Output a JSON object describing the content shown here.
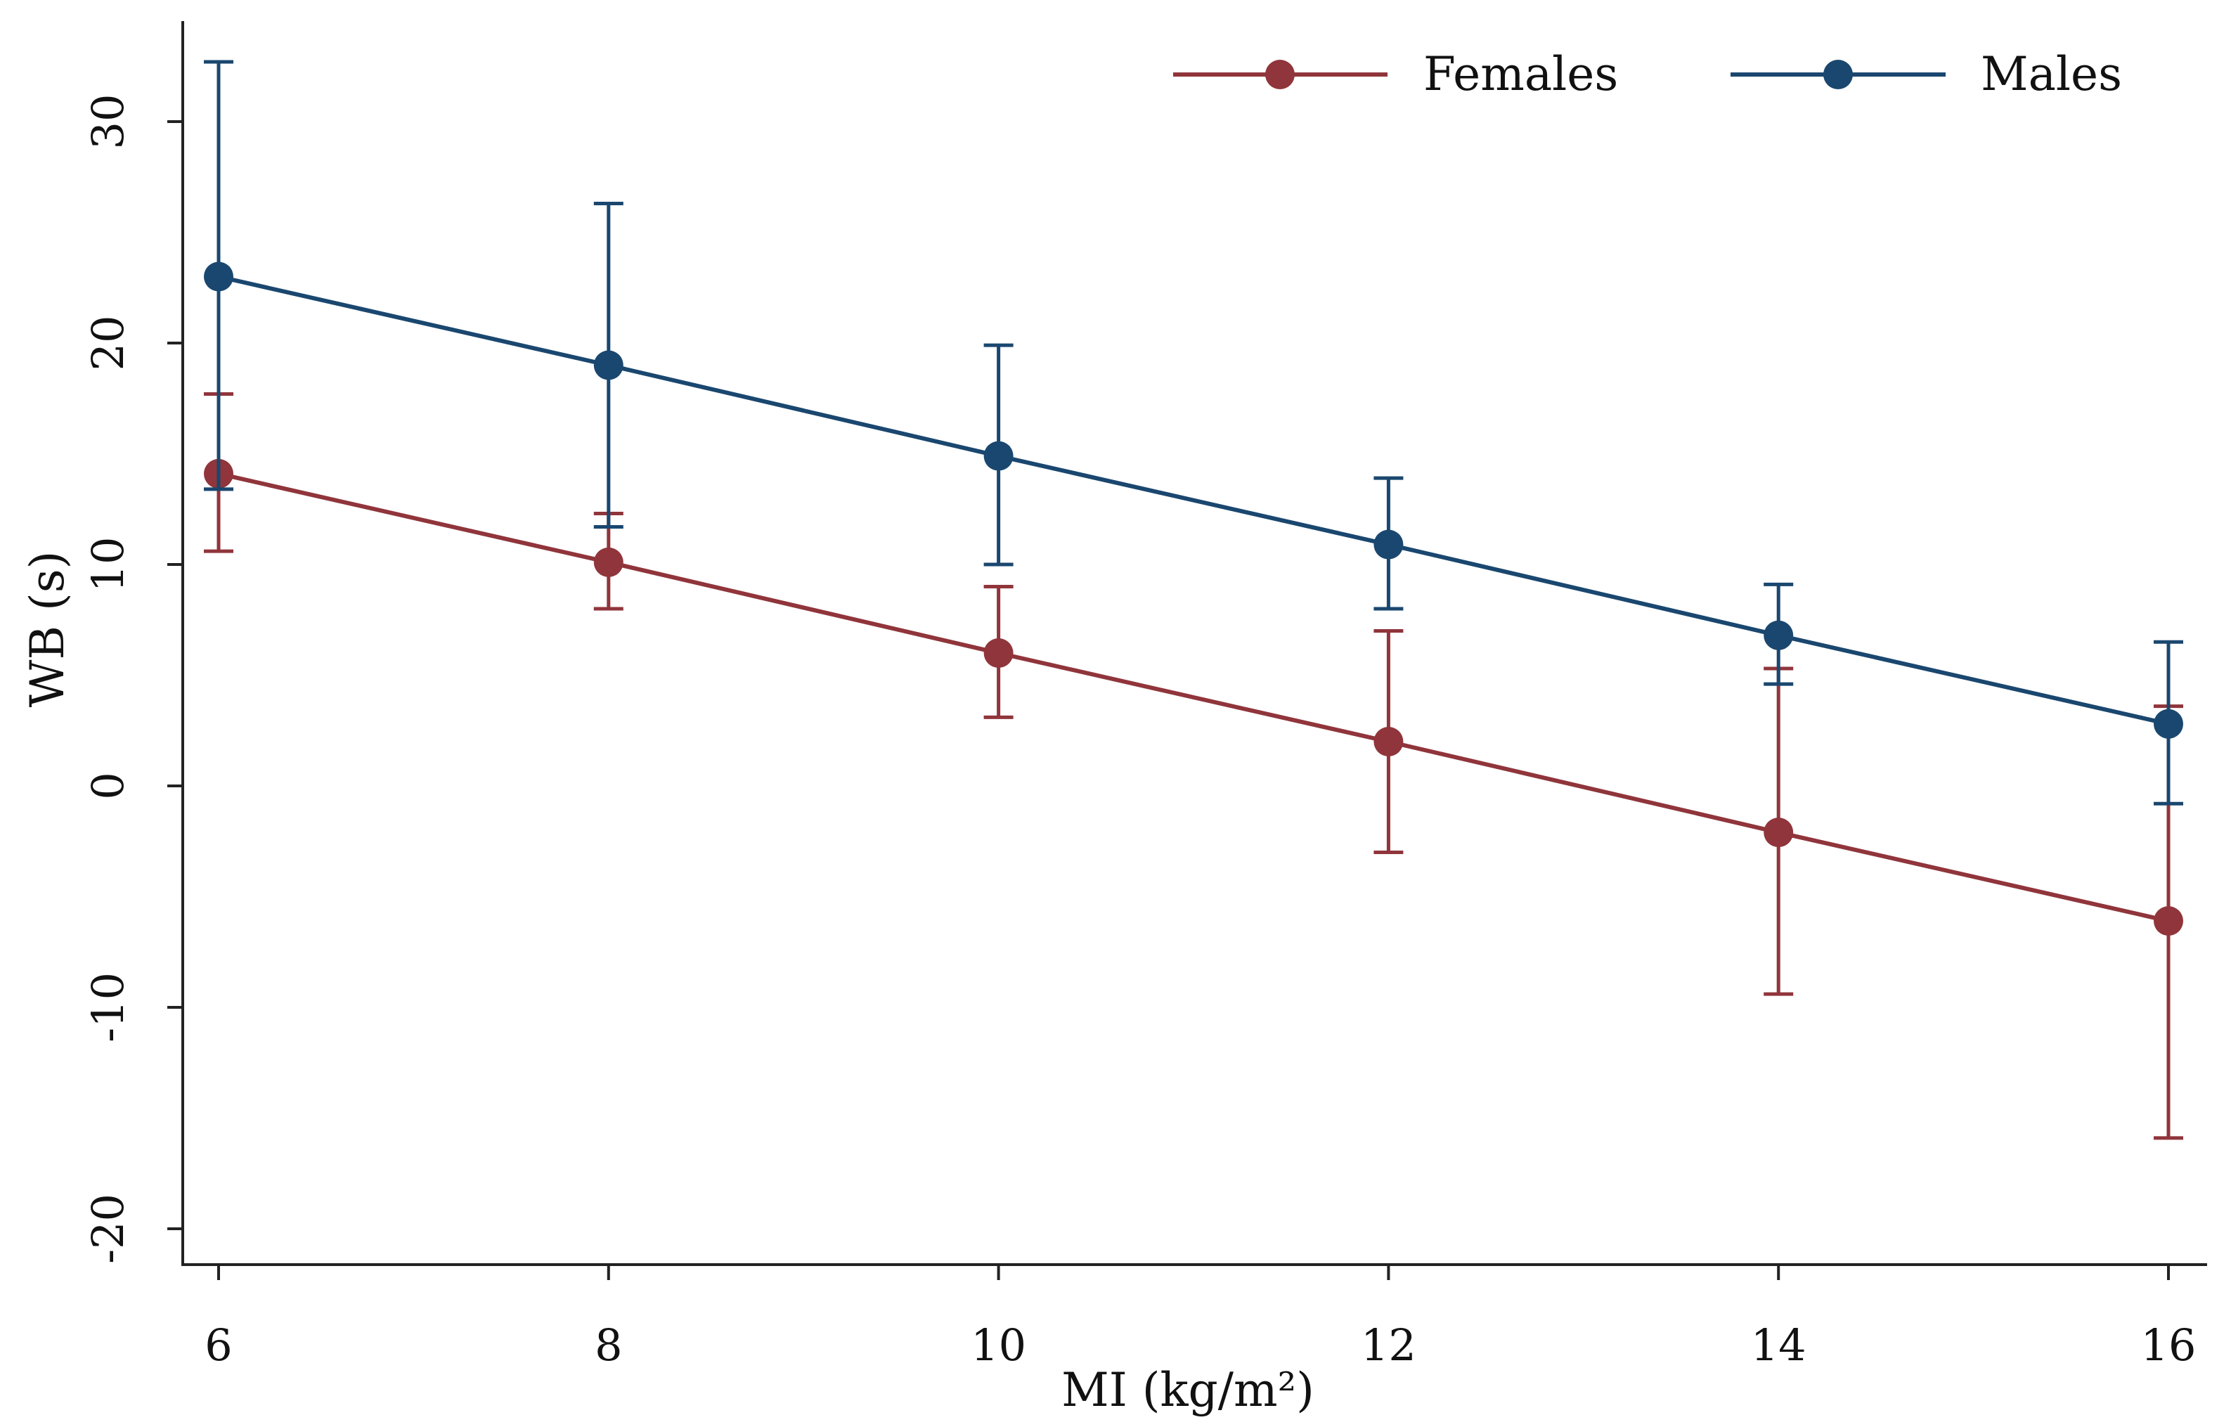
{
  "chart_data": {
    "type": "line",
    "title": "",
    "xlabel": "MI (kg/m²)",
    "ylabel": "WB (s)",
    "xlim": [
      6,
      16
    ],
    "ylim": [
      -20,
      32
    ],
    "x_ticks": [
      6,
      8,
      10,
      12,
      14,
      16
    ],
    "y_ticks": [
      -20,
      -10,
      0,
      10,
      20,
      30
    ],
    "grid": false,
    "legend_position": "top-right",
    "x": [
      6,
      8,
      10,
      12,
      14,
      16
    ],
    "series": [
      {
        "name": "Females",
        "color": "#90353b",
        "values": [
          14.1,
          10.1,
          6.0,
          2.0,
          -2.1,
          -6.1
        ],
        "ci_upper": [
          17.7,
          12.3,
          9.0,
          7.0,
          5.3,
          3.6
        ],
        "ci_lower": [
          10.6,
          8.0,
          3.1,
          -3.0,
          -9.4,
          -15.9
        ]
      },
      {
        "name": "Males",
        "color": "#1a476f",
        "values": [
          23.0,
          19.0,
          14.9,
          10.9,
          6.8,
          2.8
        ],
        "ci_upper": [
          32.7,
          26.3,
          19.9,
          13.9,
          9.1,
          6.5
        ],
        "ci_lower": [
          13.4,
          11.7,
          10.0,
          8.0,
          4.6,
          -0.8
        ]
      }
    ]
  }
}
